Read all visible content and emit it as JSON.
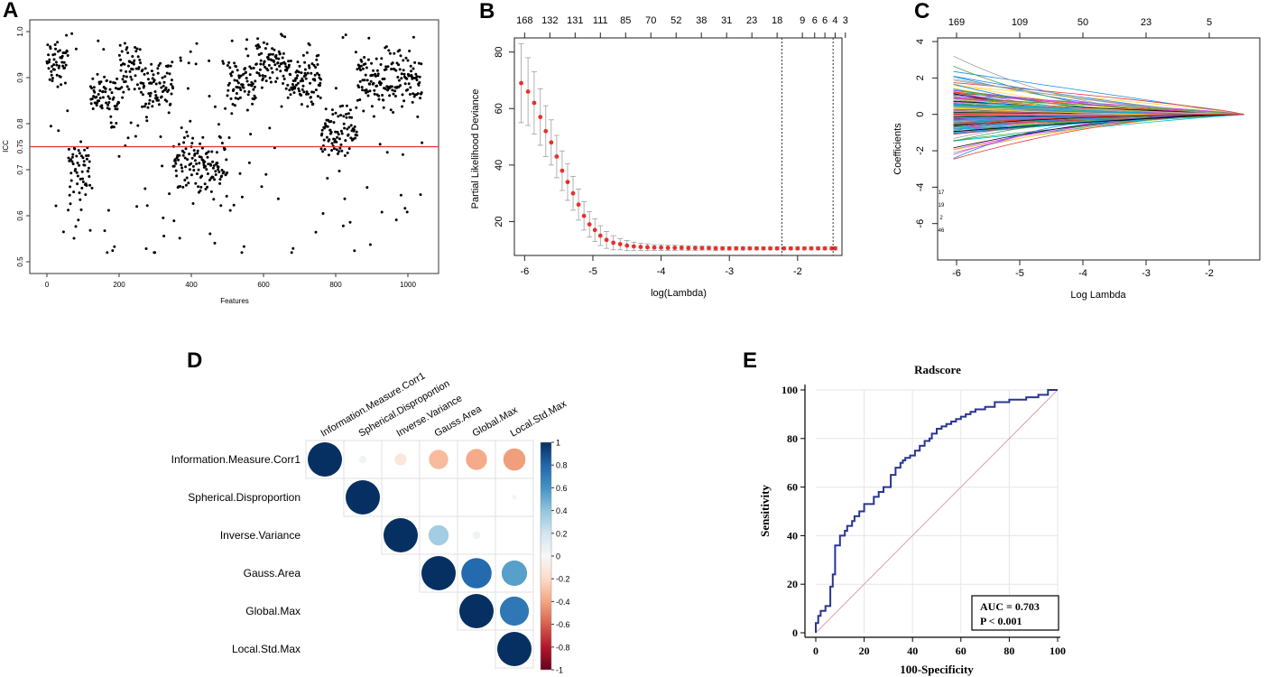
{
  "panels": {
    "a": "A",
    "b": "B",
    "c": "C",
    "d": "D",
    "e": "E"
  },
  "colors": {
    "threshold": "#e8302a",
    "lambda_points": "#e8302a",
    "roc_curve": "#283593",
    "diagonal": "#d9a0b0",
    "corr_positive": "#053061",
    "corr_negative": "#67001f"
  },
  "chart_data": [
    {
      "id": "A",
      "type": "scatter",
      "title": "",
      "xlabel": "Features",
      "ylabel": "ICC",
      "xlim": [
        0,
        1040
      ],
      "ylim": [
        0.5,
        1.0
      ],
      "x_ticks": [
        0,
        200,
        400,
        600,
        800,
        1000
      ],
      "y_ticks": [
        0.5,
        0.6,
        0.7,
        0.8,
        0.9,
        1.0
      ],
      "threshold": {
        "value": 0.75,
        "label": "0.75"
      },
      "n_points": 1040,
      "cluster_means": [
        {
          "x_range": [
            0,
            60
          ],
          "mean": 0.93
        },
        {
          "x_range": [
            60,
            120
          ],
          "mean": 0.7
        },
        {
          "x_range": [
            120,
            200
          ],
          "mean": 0.86
        },
        {
          "x_range": [
            200,
            260
          ],
          "mean": 0.92
        },
        {
          "x_range": [
            260,
            350
          ],
          "mean": 0.88
        },
        {
          "x_range": [
            350,
            420
          ],
          "mean": 0.72
        },
        {
          "x_range": [
            420,
            500
          ],
          "mean": 0.7
        },
        {
          "x_range": [
            500,
            580
          ],
          "mean": 0.88
        },
        {
          "x_range": [
            580,
            660
          ],
          "mean": 0.93
        },
        {
          "x_range": [
            660,
            760
          ],
          "mean": 0.9
        },
        {
          "x_range": [
            760,
            860
          ],
          "mean": 0.78
        },
        {
          "x_range": [
            860,
            1040
          ],
          "mean": 0.9
        }
      ]
    },
    {
      "id": "B",
      "type": "line",
      "title": "",
      "xlabel": "log(Lambda)",
      "ylabel": "Partial Likelihood Deviance",
      "xlim": [
        -6.15,
        -1.35
      ],
      "ylim": [
        8,
        85
      ],
      "x_ticks": [
        -6,
        -5,
        -4,
        -3,
        -2
      ],
      "y_ticks": [
        20,
        40,
        60,
        80
      ],
      "top_ticks": [
        {
          "x": -6.0,
          "label": "168"
        },
        {
          "x": -5.63,
          "label": "132"
        },
        {
          "x": -5.26,
          "label": "131"
        },
        {
          "x": -4.89,
          "label": "111"
        },
        {
          "x": -4.52,
          "label": "85"
        },
        {
          "x": -4.15,
          "label": "70"
        },
        {
          "x": -3.78,
          "label": "52"
        },
        {
          "x": -3.41,
          "label": "38"
        },
        {
          "x": -3.04,
          "label": "31"
        },
        {
          "x": -2.67,
          "label": "23"
        },
        {
          "x": -2.3,
          "label": "18"
        },
        {
          "x": -1.93,
          "label": "9"
        },
        {
          "x": -1.75,
          "label": "6"
        },
        {
          "x": -1.6,
          "label": "6"
        },
        {
          "x": -1.45,
          "label": "4"
        },
        {
          "x": -1.3,
          "label": "3"
        }
      ],
      "vlines": [
        -2.23,
        -1.48
      ],
      "x": [
        -6.05,
        -5.95,
        -5.86,
        -5.77,
        -5.69,
        -5.61,
        -5.53,
        -5.45,
        -5.37,
        -5.29,
        -5.21,
        -5.13,
        -5.05,
        -4.97,
        -4.89,
        -4.8,
        -4.7,
        -4.6,
        -4.5,
        -4.4,
        -4.3,
        -4.2,
        -4.1,
        -4.0,
        -3.9,
        -3.8,
        -3.7,
        -3.6,
        -3.5,
        -3.4,
        -3.3,
        -3.2,
        -3.1,
        -3.0,
        -2.9,
        -2.8,
        -2.7,
        -2.6,
        -2.5,
        -2.4,
        -2.3,
        -2.2,
        -2.1,
        -2.0,
        -1.9,
        -1.8,
        -1.7,
        -1.6,
        -1.5,
        -1.45
      ],
      "values": [
        69,
        66,
        62,
        57,
        52,
        48,
        43,
        38,
        34,
        30,
        26,
        22,
        19,
        17,
        15,
        13.5,
        12.5,
        12,
        11.5,
        11.2,
        11,
        10.9,
        10.8,
        10.8,
        10.7,
        10.7,
        10.7,
        10.6,
        10.6,
        10.6,
        10.6,
        10.5,
        10.5,
        10.5,
        10.5,
        10.5,
        10.5,
        10.5,
        10.5,
        10.5,
        10.5,
        10.5,
        10.5,
        10.5,
        10.5,
        10.5,
        10.5,
        10.5,
        10.5,
        10.5
      ],
      "errors": [
        14,
        12,
        11,
        10,
        9,
        8,
        7.5,
        7,
        6.5,
        6,
        5.5,
        5,
        4.5,
        4,
        3.5,
        3,
        2.5,
        2,
        1.8,
        1.5,
        1.3,
        1.2,
        1,
        1,
        0.9,
        0.9,
        0.8,
        0.8,
        0.8,
        0.7,
        0.7,
        0.7,
        0.6,
        0.6,
        0.6,
        0.6,
        0.5,
        0.5,
        0.5,
        0.5,
        0.5,
        0.5,
        0.5,
        0.5,
        0.5,
        0.5,
        0.5,
        0.5,
        0.5,
        0.5
      ]
    },
    {
      "id": "C",
      "type": "line",
      "title": "",
      "xlabel": "Log Lambda",
      "ylabel": "Coefficients",
      "xlim": [
        -6.3,
        -1.2
      ],
      "ylim": [
        -8,
        4.2
      ],
      "x_ticks": [
        -6,
        -5,
        -4,
        -3,
        -2
      ],
      "y_ticks": [
        -6,
        -4,
        -2,
        0,
        2,
        4
      ],
      "top_ticks": [
        {
          "x": -6.0,
          "label": "169"
        },
        {
          "x": -5.0,
          "label": "109"
        },
        {
          "x": -4.0,
          "label": "50"
        },
        {
          "x": -3.0,
          "label": "23"
        },
        {
          "x": -2.0,
          "label": "5"
        }
      ],
      "converge_x": -1.45,
      "n_paths": 170,
      "side_labels": [
        "17",
        "19",
        "2",
        "46"
      ]
    },
    {
      "id": "D",
      "type": "heatmap",
      "title": "",
      "variables": [
        "Information.Measure.Corr1",
        "Spherical.Disproportion",
        "Inverse.Variance",
        "Gauss.Area",
        "Global.Max",
        "Local.Std.Max"
      ],
      "matrix": [
        [
          1.0,
          0.05,
          -0.12,
          -0.32,
          -0.38,
          -0.42
        ],
        [
          0.05,
          1.0,
          0.0,
          0.0,
          0.0,
          0.02
        ],
        [
          -0.12,
          0.0,
          1.0,
          0.35,
          0.05,
          0.0
        ],
        [
          -0.32,
          0.0,
          0.35,
          1.0,
          0.78,
          0.55
        ],
        [
          -0.38,
          0.0,
          0.05,
          0.78,
          1.0,
          0.72
        ],
        [
          -0.42,
          0.02,
          0.0,
          0.55,
          0.72,
          1.0
        ]
      ],
      "colorbar_ticks": [
        "1",
        "0.8",
        "0.6",
        "0.4",
        "0.2",
        "0",
        "-0.2",
        "-0.4",
        "-0.6",
        "-0.8",
        "-1"
      ]
    },
    {
      "id": "E",
      "type": "line",
      "title": "Radscore",
      "xlabel": "100-Specificity",
      "ylabel": "Sensitivity",
      "xlim": [
        0,
        100
      ],
      "ylim": [
        0,
        100
      ],
      "x_ticks": [
        0,
        20,
        40,
        60,
        80,
        100
      ],
      "y_ticks": [
        0,
        20,
        40,
        60,
        80,
        100
      ],
      "annotation": [
        "AUC = 0.703",
        "P < 0.001"
      ],
      "x": [
        0,
        0,
        1,
        1,
        2,
        2,
        4,
        4,
        6,
        6,
        7,
        7,
        8,
        8,
        10,
        10,
        12,
        12,
        13,
        13,
        15,
        15,
        16,
        16,
        18,
        18,
        20,
        20,
        24,
        24,
        26,
        26,
        28,
        28,
        31,
        31,
        33,
        33,
        35,
        35,
        36,
        36,
        37,
        37,
        39,
        39,
        41,
        41,
        43,
        43,
        45,
        45,
        47,
        47,
        48,
        48,
        50,
        50,
        52,
        52,
        54,
        54,
        56,
        56,
        58,
        58,
        60,
        60,
        62,
        62,
        64,
        64,
        66,
        66,
        70,
        70,
        74,
        74,
        80,
        80,
        87,
        87,
        92,
        92,
        96,
        96,
        100
      ],
      "values": [
        0,
        4,
        4,
        7,
        7,
        9,
        9,
        11,
        11,
        19,
        19,
        24,
        24,
        36,
        36,
        40,
        40,
        42,
        42,
        44,
        44,
        46,
        46,
        48,
        48,
        50,
        50,
        53,
        53,
        56,
        56,
        58,
        58,
        60,
        60,
        65,
        65,
        68,
        68,
        70,
        70,
        71,
        71,
        72,
        72,
        73,
        73,
        75,
        75,
        77,
        77,
        79,
        79,
        80,
        80,
        82,
        82,
        84,
        84,
        85,
        85,
        86,
        86,
        87,
        87,
        88,
        88,
        89,
        89,
        90,
        90,
        91,
        91,
        92,
        92,
        93,
        93,
        95,
        95,
        96,
        96,
        97,
        97,
        98,
        98,
        100,
        100
      ]
    }
  ]
}
